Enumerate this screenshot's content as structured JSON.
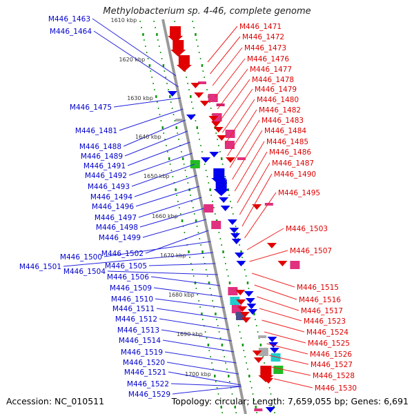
{
  "title": "Methylobacterium sp. 4-46, complete genome",
  "footer": {
    "accession": "Accession: NC_010511",
    "summary": "Topology: circular; Length: 7,659,055 bp; Genes: 6,691"
  },
  "colors": {
    "left_label": "#0000cc",
    "right_label": "#dd0000",
    "backbone": "#999999",
    "ticks": "#119911"
  },
  "scale_labels": [
    "1610 kbp",
    "1620 kbp",
    "1630 kbp",
    "1640 kbp",
    "1650 kbp",
    "1660 kbp",
    "1670 kbp",
    "1680 kbp",
    "1690 kbp",
    "1700 kbp"
  ],
  "left_genes": [
    "M446_1463",
    "M446_1464",
    "M446_1475",
    "M446_1481",
    "M446_1488",
    "M446_1489",
    "M446_1491",
    "M446_1492",
    "M446_1493",
    "M446_1494",
    "M446_1496",
    "M446_1497",
    "M446_1498",
    "M446_1499",
    "M446_1502",
    "M446_1500",
    "M446_1501",
    "M446_1505",
    "M446_1504",
    "M446_1506",
    "M446_1509",
    "M446_1510",
    "M446_1511",
    "M446_1512",
    "M446_1513",
    "M446_1514",
    "M446_1519",
    "M446_1520",
    "M446_1521",
    "M446_1522",
    "M446_1529"
  ],
  "right_genes": [
    "M446_1471",
    "M446_1472",
    "M446_1473",
    "M446_1476",
    "M446_1477",
    "M446_1478",
    "M446_1479",
    "M446_1480",
    "M446_1482",
    "M446_1483",
    "M446_1484",
    "M446_1485",
    "M446_1486",
    "M446_1487",
    "M446_1490",
    "M446_1495",
    "M446_1503",
    "M446_1507",
    "M446_1515",
    "M446_1516",
    "M446_1517",
    "M446_1523",
    "M446_1524",
    "M446_1525",
    "M446_1526",
    "M446_1527",
    "M446_1528",
    "M446_1530"
  ]
}
